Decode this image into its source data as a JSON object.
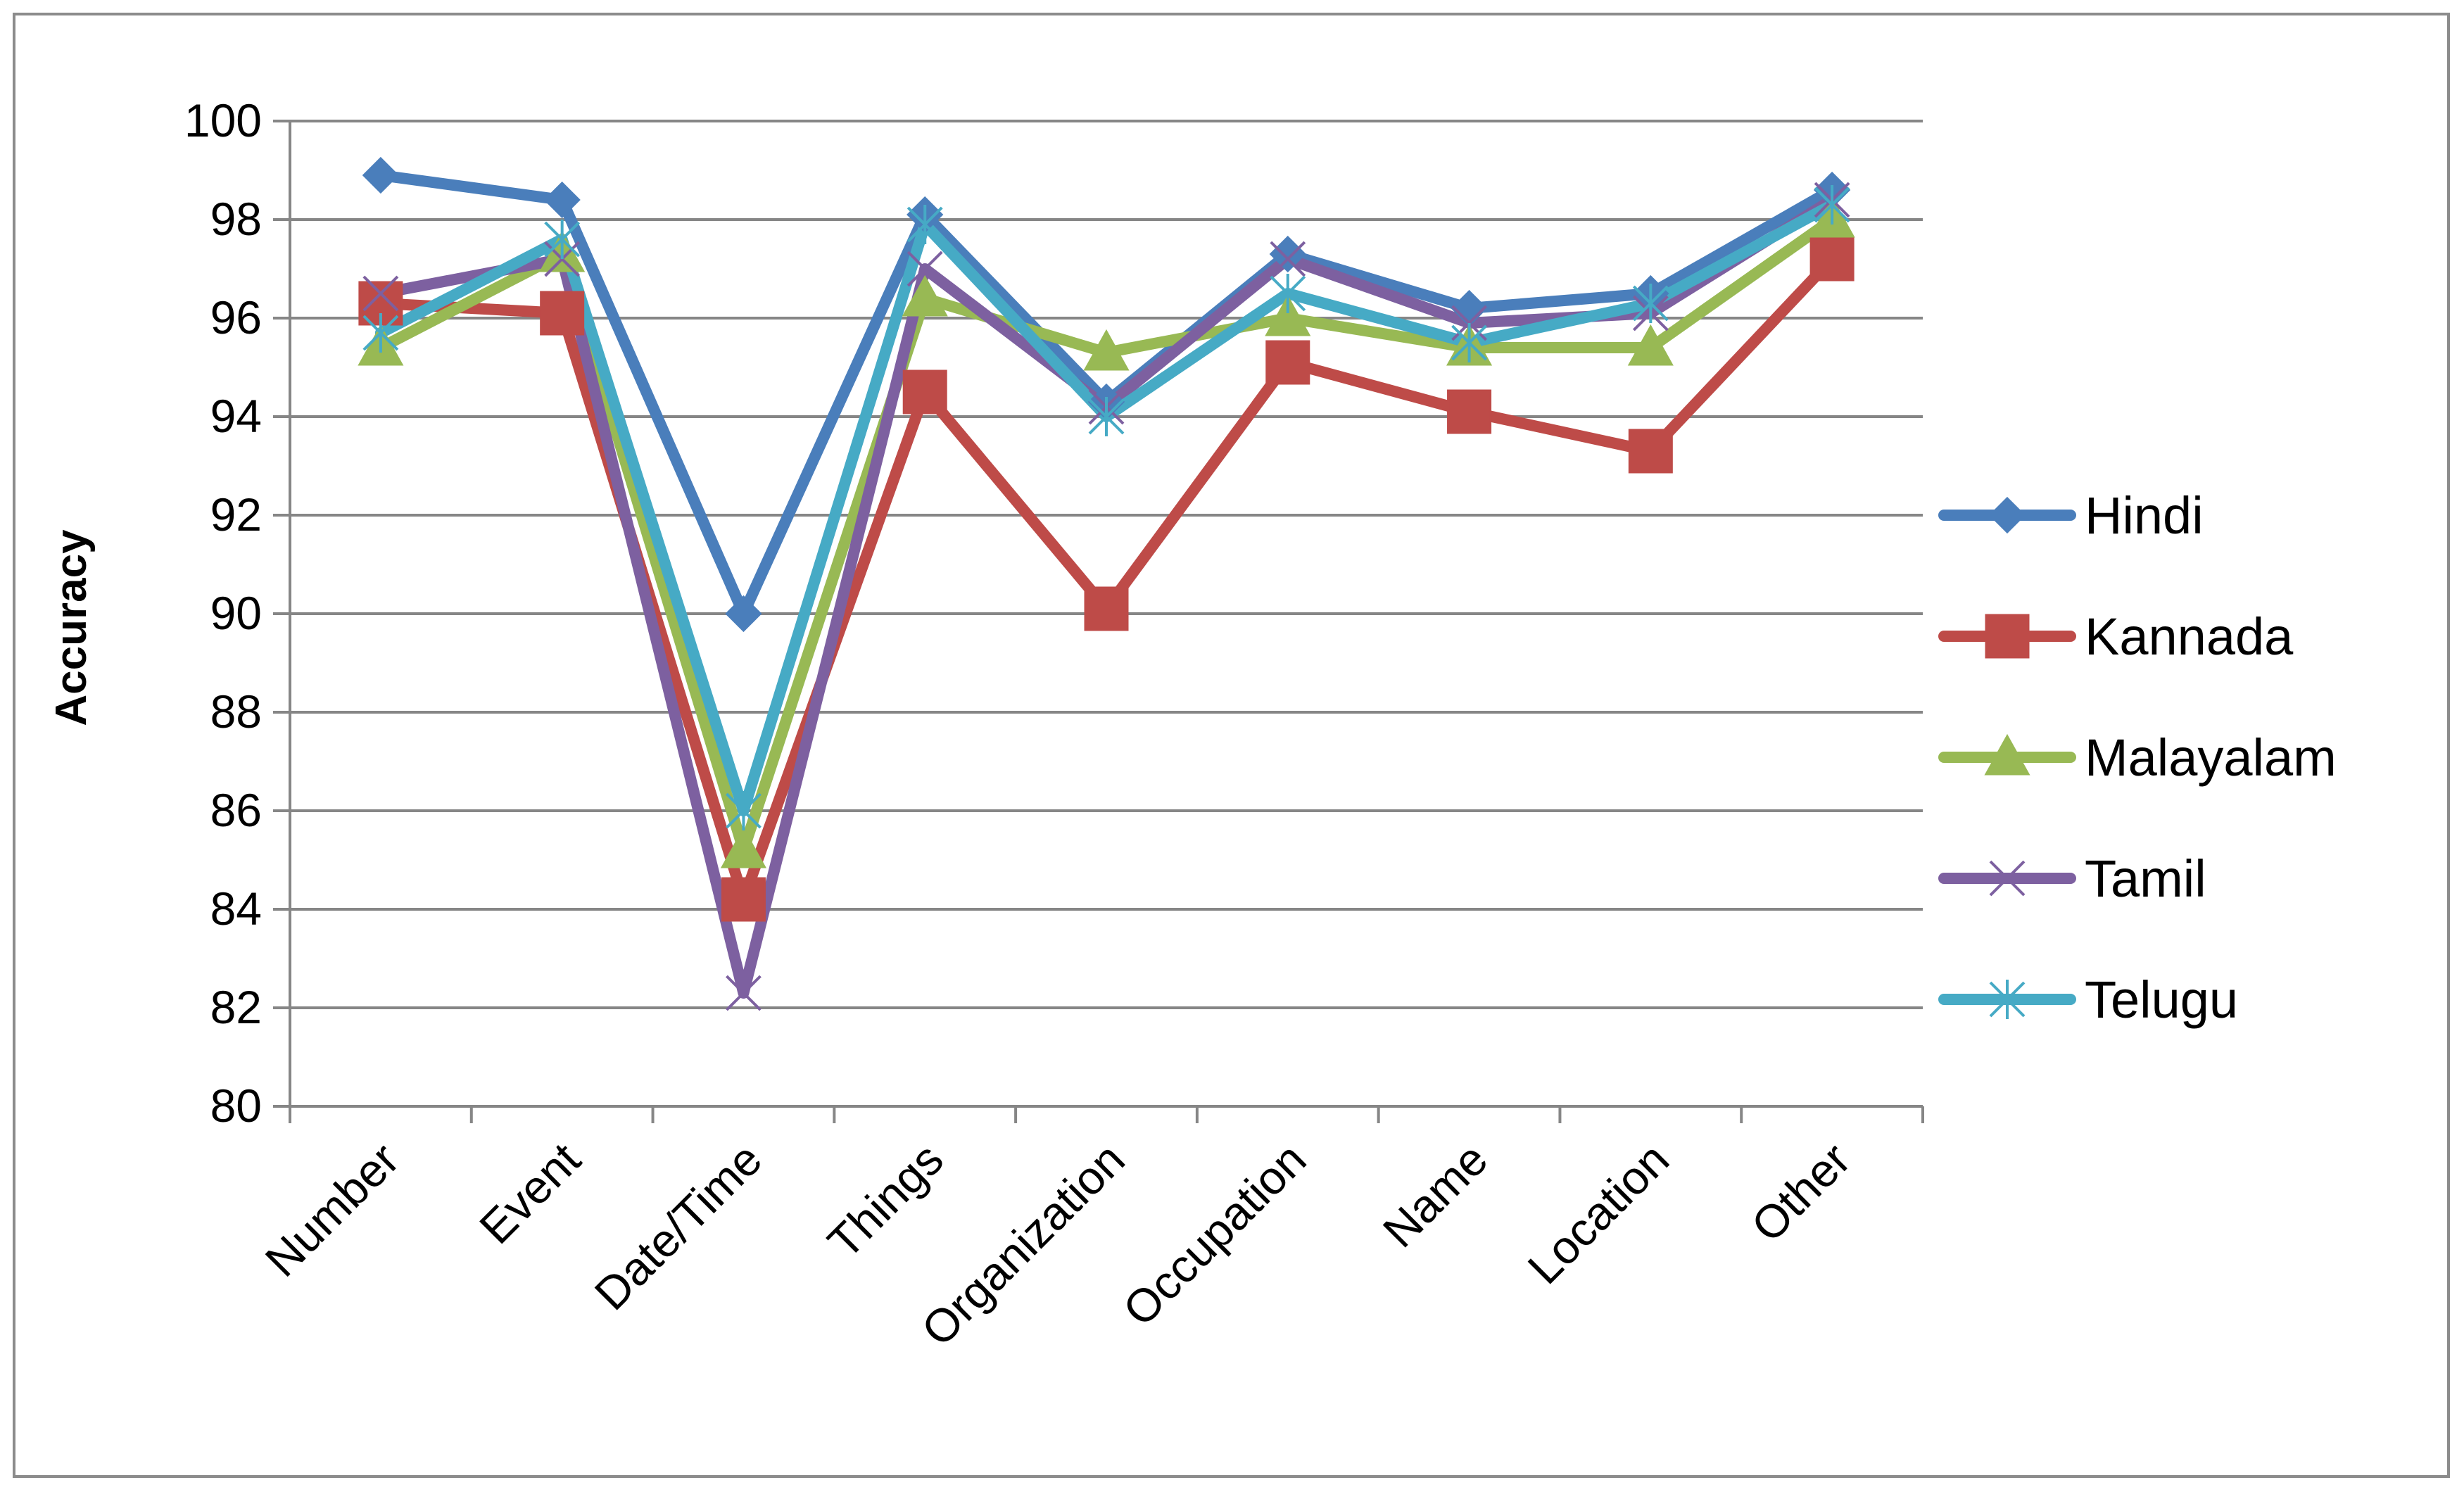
{
  "chart_data": {
    "type": "line",
    "title": "",
    "xlabel": "",
    "ylabel": "Accuracy",
    "categories": [
      "Number",
      "Event",
      "Date/Time",
      "Things",
      "Organization",
      "Occupation",
      "Name",
      "Location",
      "Other"
    ],
    "ylim": [
      80,
      100
    ],
    "yticks": [
      80,
      82,
      84,
      86,
      88,
      90,
      92,
      94,
      96,
      98,
      100
    ],
    "grid": true,
    "legend_position": "right",
    "series": [
      {
        "name": "Hindi",
        "color": "#4a7ebb",
        "marker": "diamond",
        "values": [
          98.9,
          98.4,
          90.0,
          98.1,
          94.3,
          97.3,
          96.2,
          96.5,
          98.6
        ]
      },
      {
        "name": "Kannada",
        "color": "#be4b48",
        "marker": "square",
        "values": [
          96.3,
          96.1,
          84.2,
          94.5,
          90.1,
          95.1,
          94.1,
          93.3,
          97.2
        ]
      },
      {
        "name": "Malayalam",
        "color": "#98b954",
        "marker": "triangle",
        "values": [
          95.4,
          97.3,
          85.2,
          96.4,
          95.3,
          96.0,
          95.4,
          95.4,
          98.0
        ]
      },
      {
        "name": "Tamil",
        "color": "#7d60a0",
        "marker": "x",
        "values": [
          96.5,
          97.2,
          82.3,
          97.0,
          94.2,
          97.2,
          95.9,
          96.1,
          98.4
        ]
      },
      {
        "name": "Telugu",
        "color": "#46aac5",
        "marker": "asterisk",
        "values": [
          95.7,
          97.6,
          86.0,
          97.9,
          94.0,
          96.5,
          95.5,
          96.3,
          98.3
        ]
      }
    ]
  }
}
